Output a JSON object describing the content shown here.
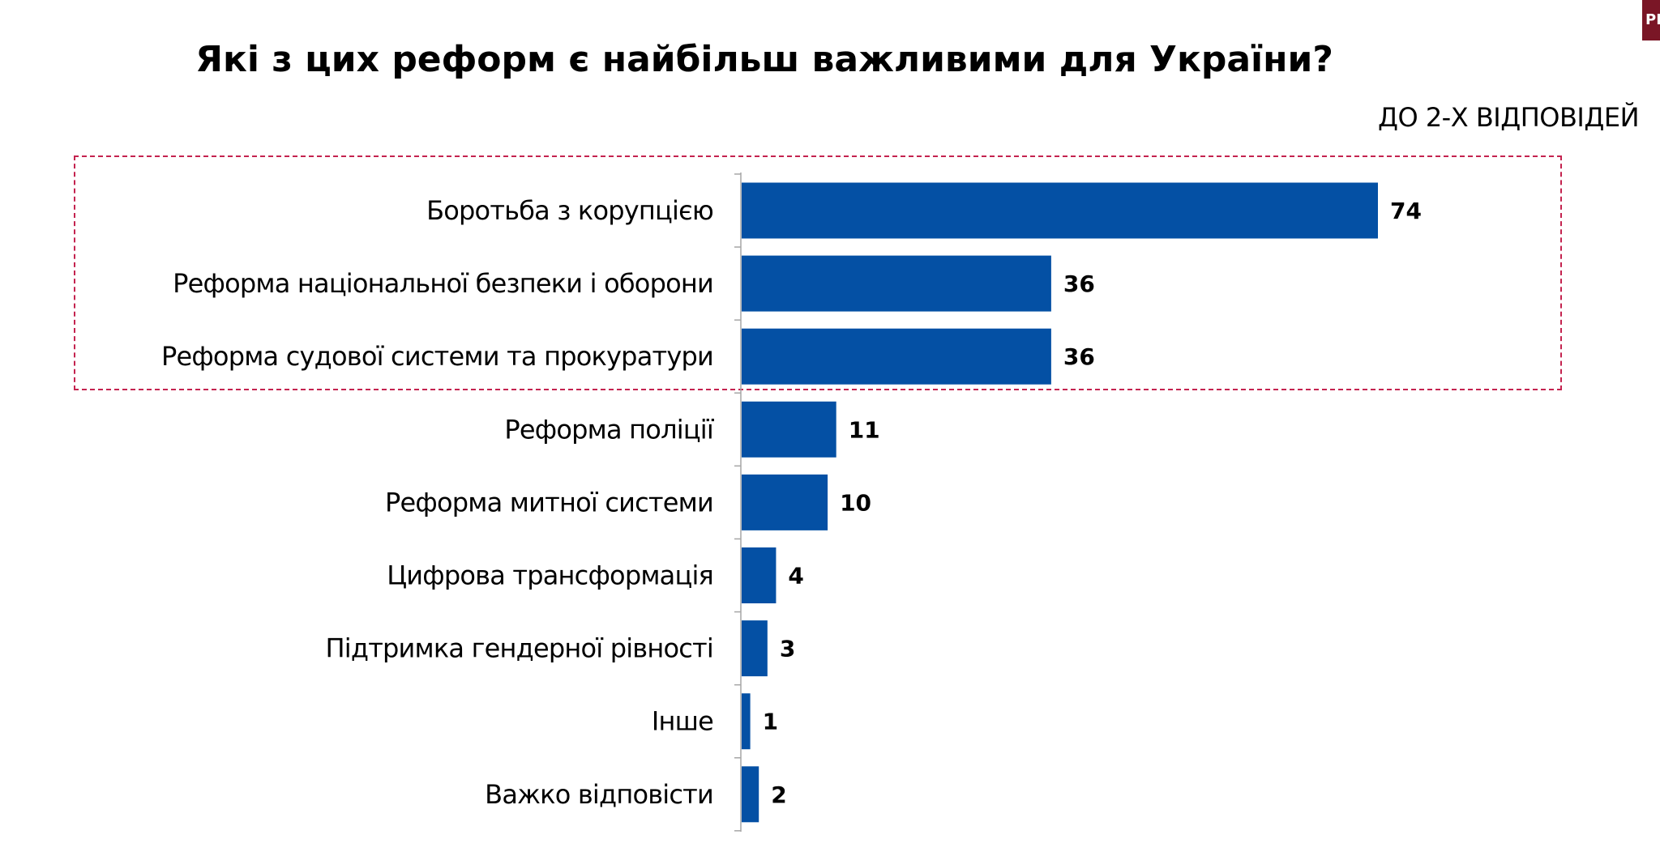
{
  "header": {
    "title": "Які з цих реформ є найбільш важливими для України?",
    "subtitle": "ДО 2-Х ВІДПОВІДЕЙ",
    "corner_badge": "РІ"
  },
  "colors": {
    "bar": "#0450a4",
    "highlight_border": "#c4234f",
    "axis": "#a6a6a6",
    "badge": "#7a1626"
  },
  "chart_data": {
    "type": "bar",
    "orientation": "horizontal",
    "title": "Які з цих реформ є найбільш важливими для України?",
    "subtitle": "ДО 2-Х ВІДПОВІДЕЙ",
    "xlabel": "",
    "ylabel": "",
    "xlim": [
      0,
      80
    ],
    "grid": false,
    "legend": "none",
    "highlighted_categories": [
      "Боротьба з корупцією",
      "Реформа національної безпеки і оборони",
      "Реформа судової системи та прокуратури"
    ],
    "categories": [
      "Боротьба з корупцією",
      "Реформа національної безпеки і оборони",
      "Реформа судової системи та прокуратури",
      "Реформа поліції",
      "Реформа митної системи",
      "Цифрова трансформація",
      "Підтримка гендерної рівності",
      "Інше",
      "Важко відповісти"
    ],
    "values": [
      74,
      36,
      36,
      11,
      10,
      4,
      3,
      1,
      2
    ]
  }
}
